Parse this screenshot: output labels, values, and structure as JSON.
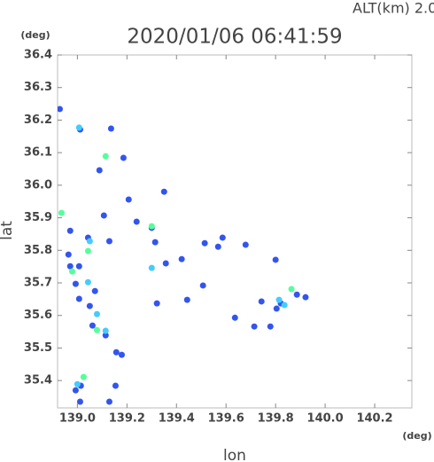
{
  "chart_data": {
    "type": "scatter",
    "title": "2020/01/06 06:41:59",
    "subtitle": "ALT(km) 2.0",
    "x_label": "lon",
    "y_label": "lat",
    "x_unit": "(deg)",
    "y_unit": "(deg)",
    "xlim": [
      138.92,
      140.35
    ],
    "ylim": [
      35.316,
      36.4
    ],
    "xticks": [
      {
        "value": 139,
        "label": "139.0"
      },
      139.2,
      139.4,
      139.6,
      139.8,
      {
        "value": 140,
        "label": "140.0"
      },
      140.2
    ],
    "yticks": [
      35.4,
      35.5,
      35.6,
      35.7,
      35.8,
      35.9,
      {
        "value": 36,
        "label": "36.0"
      },
      36.1,
      36.2,
      36.3,
      36.4
    ],
    "series": [
      {
        "color": "#3355ee",
        "x": [
          138.929,
          139.011,
          139.136,
          139.089,
          139.186,
          139.207,
          139.35,
          139.239,
          139.107,
          138.971,
          139.043,
          139.129,
          138.964,
          139.007,
          138.971,
          138.993,
          139.071,
          139.007,
          139.05,
          139.061,
          139.114,
          139.157,
          139.179,
          139.154,
          139.014,
          138.993,
          139.129,
          139.011,
          139.3,
          139.314,
          139.357,
          139.421,
          139.443,
          139.507,
          139.514,
          139.568,
          139.586,
          139.679,
          139.636,
          139.743,
          139.779,
          139.804,
          139.821,
          139.886,
          139.921,
          139.8,
          139.714,
          139.321
        ],
        "y": [
          36.234,
          36.171,
          36.174,
          36.046,
          36.084,
          35.956,
          35.98,
          35.888,
          35.907,
          35.86,
          35.839,
          35.828,
          35.787,
          35.751,
          35.751,
          35.697,
          35.675,
          35.651,
          35.629,
          35.569,
          35.539,
          35.487,
          35.479,
          35.384,
          35.384,
          35.37,
          35.335,
          35.335,
          35.869,
          35.825,
          35.76,
          35.773,
          35.648,
          35.692,
          35.822,
          35.811,
          35.839,
          35.817,
          35.593,
          35.643,
          35.566,
          35.621,
          35.637,
          35.664,
          35.656,
          35.771,
          35.566,
          35.637
        ]
      },
      {
        "color": "#44ccff",
        "x": [
          139.007,
          139.05,
          139.043,
          139.079,
          139.114,
          139.0,
          139.836,
          139.3,
          139.814
        ],
        "y": [
          36.177,
          35.828,
          35.702,
          35.604,
          35.553,
          35.389,
          35.632,
          35.746,
          35.648
        ]
      },
      {
        "color": "#55ff99",
        "x": [
          138.936,
          139.114,
          139.043,
          139.079,
          139.025,
          139.864,
          139.3,
          138.979
        ],
        "y": [
          35.915,
          36.089,
          35.798,
          35.555,
          35.411,
          35.681,
          35.874,
          35.735
        ]
      }
    ]
  }
}
